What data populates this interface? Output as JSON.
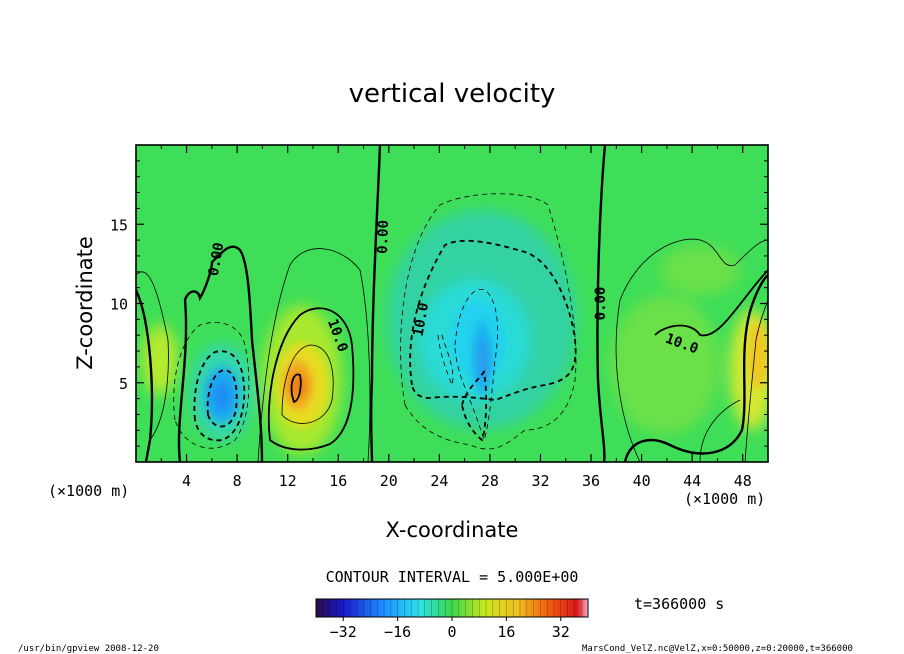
{
  "chart_data": {
    "type": "heatmap",
    "title": "vertical velocity",
    "xlabel": "X-coordinate",
    "ylabel": "Z-coordinate",
    "x_unit_label": "(×1000 m)",
    "z_unit_label": "(×1000 m)",
    "xlim": [
      0,
      50
    ],
    "ylim": [
      0,
      20
    ],
    "x_ticks": [
      4,
      8,
      12,
      16,
      20,
      24,
      28,
      32,
      36,
      40,
      44,
      48
    ],
    "y_ticks": [
      5,
      10,
      15
    ],
    "contour_interval_text": "CONTOUR INTERVAL = 5.000E+00",
    "contour_labels": [
      {
        "text": "0.00",
        "x": 6.3,
        "z": 12.8
      },
      {
        "text": "0.00",
        "x": 19.5,
        "z": 14.2
      },
      {
        "text": "0.00",
        "x": 36.7,
        "z": 10.0
      },
      {
        "text": "10.0",
        "x": 16.0,
        "z": 8.0
      },
      {
        "text": "10.0",
        "x": 22.5,
        "z": 9.0
      },
      {
        "text": "10.0",
        "x": 43.2,
        "z": 7.5
      }
    ],
    "features": [
      {
        "kind": "upward maximum",
        "x": 12.8,
        "z": 4.5,
        "approx_value": 18
      },
      {
        "kind": "downward minimum",
        "x": 7.0,
        "z": 3.8,
        "approx_value": -20
      },
      {
        "kind": "downward minimum",
        "x": 27.0,
        "z": 7.5,
        "approx_value": -16
      },
      {
        "kind": "upward maximum",
        "x": 49.5,
        "z": 7.5,
        "approx_value": 12
      }
    ],
    "colorbar": {
      "ticks": [
        "-32",
        "-16",
        "0",
        "16",
        "32"
      ],
      "range": [
        -40,
        40
      ]
    },
    "time_label": "t=366000 s",
    "footer_left": "/usr/bin/gpview  2008-12-20",
    "footer_right": "MarsCond_VelZ.nc@VelZ,x=0:50000,z=0:20000,t=366000"
  }
}
